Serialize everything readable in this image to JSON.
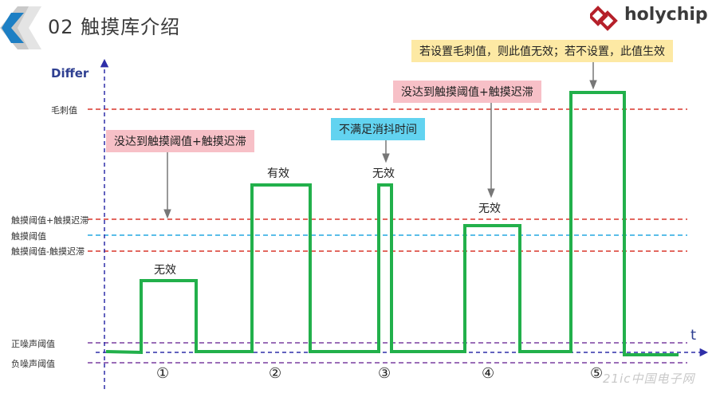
{
  "header": {
    "title": "02 触摸库介绍",
    "brand": "holychip"
  },
  "axes": {
    "y_label": "Differ",
    "x_label": "t"
  },
  "levels": {
    "burr": "毛刺值",
    "upper": "触摸阈值+触摸迟滞",
    "threshold": "触摸阈值",
    "lower": "触摸阈值-触摸迟滞",
    "noise_pos": "正噪声阈值",
    "noise_neg": "负噪声阈值"
  },
  "notes": {
    "n1": "没达到触摸阈值+触摸迟滞",
    "n2": "不满足消抖时间",
    "n3": "没达到触摸阈值+触摸迟滞",
    "n4": "若设置毛刺值，则此值无效；若不设置，此值生效"
  },
  "states": {
    "s1": "无效",
    "s2": "有效",
    "s3": "无效",
    "s4": "无效"
  },
  "markers": [
    "①",
    "②",
    "③",
    "④",
    "⑤"
  ],
  "watermark": "21ic中国电子网",
  "colors": {
    "signal": "#22b04b",
    "axis": "#2e2ea8",
    "red_line": "#d9362b",
    "cyan_line": "#25a9e0",
    "purple_line": "#7a3ea0",
    "arrow": "#777777"
  }
}
